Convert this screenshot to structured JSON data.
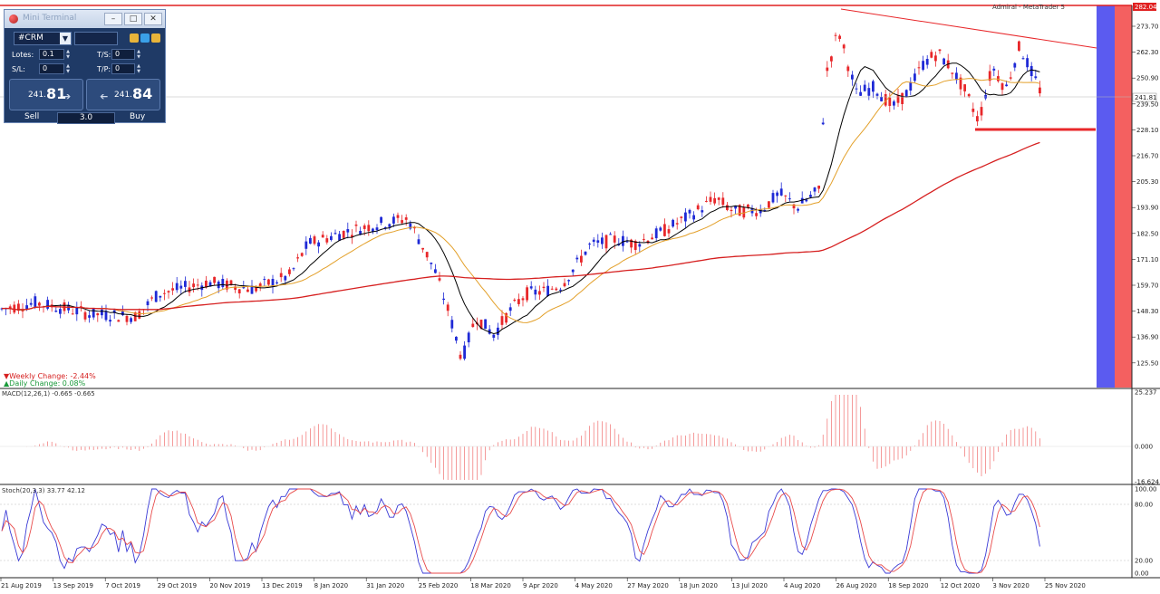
{
  "chart": {
    "broker_label": "Admiral - MetaTrader 5",
    "main_axis_ticks": [
      "273.70",
      "262.30",
      "250.90",
      "239.50",
      "228.10",
      "216.70",
      "205.30",
      "193.90",
      "182.50",
      "171.10",
      "159.70",
      "148.30",
      "136.90",
      "125.50"
    ],
    "current_price_tag": "241.81",
    "top_price_tag": "282.04",
    "weekly_change": "▼Weekly Change: -2.44%",
    "daily_change": "▲Daily Change: 0.08%",
    "macd_label": "MACD(12,26,1) -0.665 -0.665",
    "macd_ticks": [
      "25.237",
      "0.000",
      "-16.624"
    ],
    "stoch_label": "Stoch(20,3,3) 33.77 42.12",
    "stoch_ticks": [
      "100.00",
      "80.00",
      "20.00",
      "0.00"
    ],
    "date_labels": [
      "21 Aug 2019",
      "13 Sep 2019",
      "7 Oct 2019",
      "29 Oct 2019",
      "20 Nov 2019",
      "13 Dec 2019",
      "8 Jan 2020",
      "31 Jan 2020",
      "25 Feb 2020",
      "18 Mar 2020",
      "9 Apr 2020",
      "4 May 2020",
      "27 May 2020",
      "18 Jun 2020",
      "13 Jul 2020",
      "4 Aug 2020",
      "26 Aug 2020",
      "18 Sep 2020",
      "12 Oct 2020",
      "3 Nov 2020",
      "25 Nov 2020"
    ]
  },
  "mini_terminal": {
    "title": "Mini Terminal",
    "symbol": "#CRM",
    "lots_label": "Lotes:",
    "lots_value": "0.1",
    "ts_label": "T/S:",
    "ts_value": "0",
    "sl_label": "S/L:",
    "sl_value": "0",
    "tp_label": "T/P:",
    "tp_value": "0",
    "sell_price_small": "241.",
    "sell_price_big": "81",
    "buy_price_small": "241.",
    "buy_price_big": "84",
    "sell_label": "Sell",
    "buy_label": "Buy",
    "quantity": "3.0"
  },
  "colors": {
    "bull": "#1f2ad6",
    "bear": "#e8272a",
    "ma_fast": "#000000",
    "ma_mid": "#e3a02a",
    "ma_slow": "#d62020",
    "band": "#5b5bf0",
    "band_red": "#f46060"
  }
}
